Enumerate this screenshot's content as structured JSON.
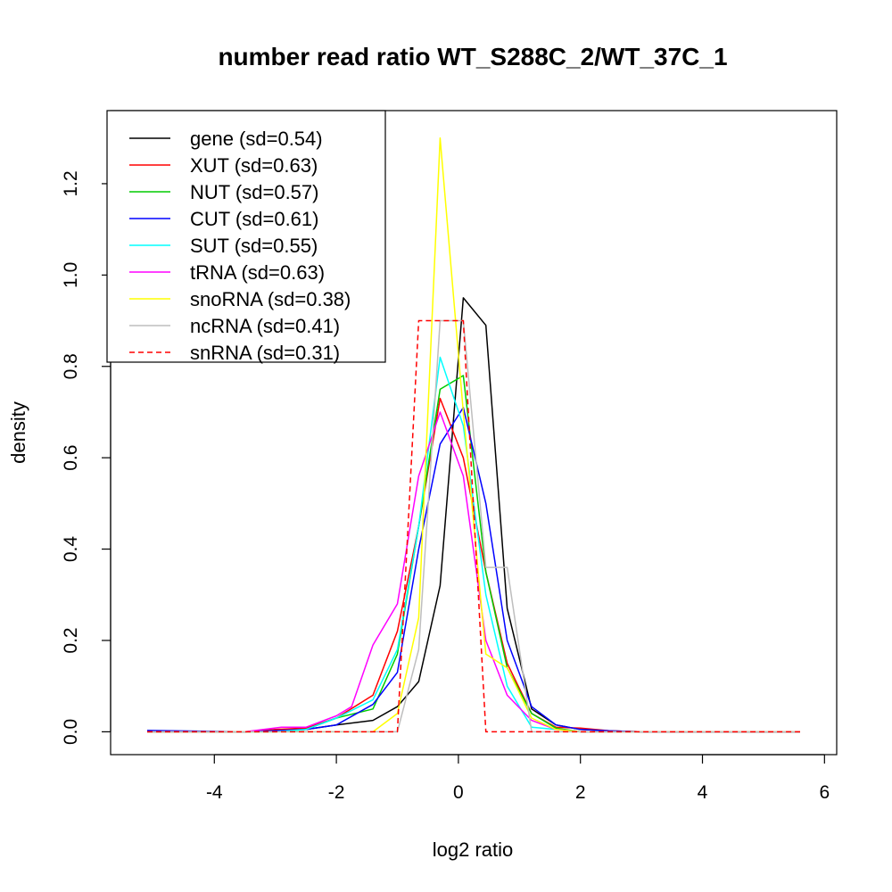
{
  "chart_data": {
    "type": "line",
    "title": "number read ratio WT_S288C_2/WT_37C_1",
    "xlabel": "log2 ratio",
    "ylabel": "density",
    "xlim": [
      -5.7,
      6.2
    ],
    "ylim": [
      -0.05,
      1.36
    ],
    "x_ticks": [
      -4,
      -2,
      0,
      2,
      4,
      6
    ],
    "x_tick_labels": [
      "-4",
      "-2",
      "0",
      "2",
      "4",
      "6"
    ],
    "y_ticks": [
      0.0,
      0.2,
      0.4,
      0.6,
      0.8,
      1.0,
      1.2
    ],
    "y_tick_labels": [
      "0.0",
      "0.2",
      "0.4",
      "0.6",
      "0.8",
      "1.0",
      "1.2"
    ],
    "grid": false,
    "legend_position": "top-left",
    "series": [
      {
        "name": "gene (sd=0.54)",
        "color": "#000000",
        "dash": false,
        "x": [
          -5.1,
          -3.5,
          -2.5,
          -2.0,
          -1.4,
          -1.0,
          -0.65,
          -0.3,
          0.08,
          0.45,
          0.8,
          1.2,
          1.6,
          2.0,
          2.5,
          3.0,
          5.6
        ],
        "y": [
          0.0,
          0.0,
          0.005,
          0.015,
          0.025,
          0.055,
          0.11,
          0.32,
          0.95,
          0.89,
          0.27,
          0.05,
          0.015,
          0.005,
          0.002,
          0.0,
          0.0
        ]
      },
      {
        "name": "XUT (sd=0.63)",
        "color": "#ff0000",
        "dash": false,
        "x": [
          -5.1,
          -3.5,
          -3.0,
          -2.5,
          -2.0,
          -1.4,
          -1.0,
          -0.65,
          -0.3,
          0.08,
          0.45,
          0.8,
          1.2,
          1.6,
          2.0,
          2.5,
          3.0,
          5.6
        ],
        "y": [
          0.0,
          0.0,
          0.005,
          0.008,
          0.03,
          0.08,
          0.22,
          0.45,
          0.73,
          0.6,
          0.35,
          0.15,
          0.04,
          0.01,
          0.008,
          0.002,
          0.0,
          0.0
        ]
      },
      {
        "name": "NUT (sd=0.57)",
        "color": "#00cc00",
        "dash": false,
        "x": [
          -5.1,
          -3.0,
          -2.5,
          -2.0,
          -1.4,
          -1.0,
          -0.65,
          -0.3,
          0.08,
          0.45,
          0.8,
          1.2,
          1.6,
          2.0,
          5.6
        ],
        "y": [
          0.0,
          0.0,
          0.005,
          0.03,
          0.05,
          0.17,
          0.45,
          0.75,
          0.78,
          0.35,
          0.14,
          0.04,
          0.008,
          0.0,
          0.0
        ]
      },
      {
        "name": "CUT (sd=0.61)",
        "color": "#0000ff",
        "dash": false,
        "x": [
          -5.1,
          -3.5,
          -2.5,
          -2.0,
          -1.4,
          -1.0,
          -0.65,
          -0.3,
          0.08,
          0.45,
          0.8,
          1.2,
          1.6,
          2.0,
          2.5,
          3.0,
          5.6
        ],
        "y": [
          0.003,
          0.0,
          0.005,
          0.015,
          0.06,
          0.13,
          0.4,
          0.63,
          0.71,
          0.5,
          0.2,
          0.055,
          0.015,
          0.005,
          0.002,
          0.0,
          0.0
        ]
      },
      {
        "name": "SUT (sd=0.55)",
        "color": "#00ffff",
        "dash": false,
        "x": [
          -5.1,
          -3.0,
          -2.5,
          -2.0,
          -1.4,
          -1.0,
          -0.65,
          -0.3,
          0.08,
          0.45,
          0.8,
          1.2,
          1.6,
          2.0,
          5.6
        ],
        "y": [
          0.0,
          0.0,
          0.005,
          0.03,
          0.07,
          0.18,
          0.45,
          0.82,
          0.67,
          0.3,
          0.1,
          0.01,
          0.005,
          0.0,
          0.0
        ]
      },
      {
        "name": "tRNA (sd=0.63)",
        "color": "#ff00ff",
        "dash": false,
        "x": [
          -5.1,
          -3.5,
          -2.9,
          -2.5,
          -2.0,
          -1.75,
          -1.4,
          -1.0,
          -0.65,
          -0.3,
          0.08,
          0.45,
          0.8,
          1.2,
          1.6,
          2.0,
          5.6
        ],
        "y": [
          0.0,
          0.0,
          0.01,
          0.01,
          0.035,
          0.055,
          0.19,
          0.28,
          0.56,
          0.7,
          0.56,
          0.2,
          0.08,
          0.025,
          0.005,
          0.0,
          0.0
        ]
      },
      {
        "name": "snoRNA (sd=0.38)",
        "color": "#ffff00",
        "dash": false,
        "x": [
          -5.1,
          -1.4,
          -1.0,
          -0.65,
          -0.3,
          0.08,
          0.45,
          0.8,
          1.2,
          1.6,
          2.0,
          5.6
        ],
        "y": [
          0.0,
          0.0,
          0.04,
          0.25,
          1.3,
          0.7,
          0.17,
          0.14,
          0.03,
          0.005,
          0.0,
          0.0
        ]
      },
      {
        "name": "ncRNA (sd=0.41)",
        "color": "#bebebe",
        "dash": false,
        "x": [
          -5.1,
          -1.0,
          -0.65,
          -0.3,
          0.08,
          0.45,
          0.8,
          1.2,
          1.6,
          5.6
        ],
        "y": [
          0.0,
          0.0,
          0.18,
          0.9,
          0.9,
          0.36,
          0.36,
          0.0,
          0.0,
          0.0
        ]
      },
      {
        "name": "snRNA (sd=0.31)",
        "color": "#ff0000",
        "dash": true,
        "x": [
          -5.1,
          -1.0,
          -0.65,
          0.08,
          0.45,
          5.6
        ],
        "y": [
          0.0,
          0.0,
          0.9,
          0.9,
          0.0,
          0.0
        ]
      }
    ]
  }
}
